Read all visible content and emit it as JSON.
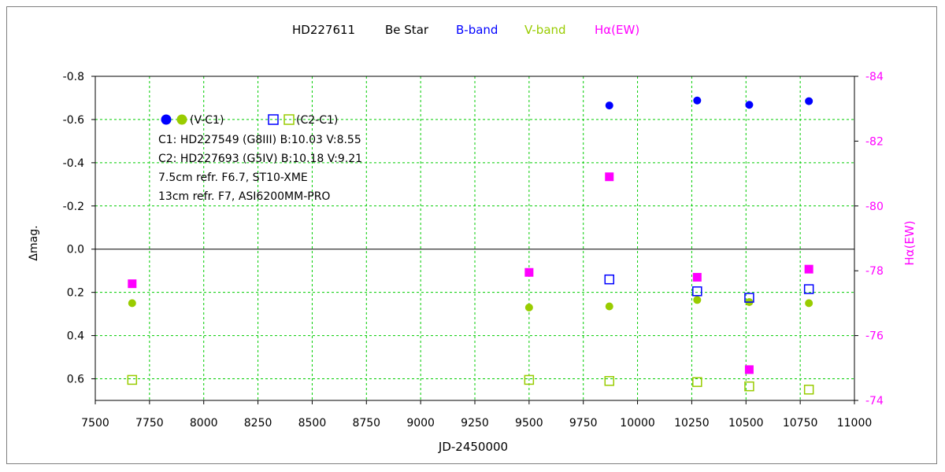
{
  "chart_data": {
    "type": "scatter",
    "title": {
      "star": "HD227611",
      "type": "Be Star",
      "bband": "B-band",
      "vband": "V-band",
      "halpha": "Hα(EW)"
    },
    "colors": {
      "bband": "#0000ff",
      "vband": "#99cc00",
      "halpha": "#ff00ff",
      "grid": "#00cc00",
      "axis": "#000000",
      "title": "#000000"
    },
    "xlabel": "JD-2450000",
    "ylabel_left": "Δmag.",
    "ylabel_right": "Hα(EW)",
    "xlim": [
      7500,
      11000
    ],
    "ylim_left": [
      -0.8,
      0.7
    ],
    "ylim_right": [
      -84,
      -74
    ],
    "left_axis_reversed": true,
    "right_axis_reversed": true,
    "x_ticks": [
      7500,
      7750,
      8000,
      8250,
      8500,
      8750,
      9000,
      9250,
      9500,
      9750,
      10000,
      10250,
      10500,
      10750,
      11000
    ],
    "y_left_ticks": [
      -0.8,
      -0.6,
      -0.4,
      -0.2,
      0.0,
      0.2,
      0.4,
      0.6
    ],
    "y_left_tick_labels": [
      "-0.8",
      "-0.6",
      "-0.4",
      "-0.2",
      "0.0",
      "0.2",
      "0.4",
      "0.6"
    ],
    "y_right_ticks": [
      -84,
      -82,
      -80,
      -78,
      -76,
      -74
    ],
    "y_right_tick_labels": [
      "-84",
      "-82",
      "-80",
      "-78",
      "-76",
      "-74"
    ],
    "grid": true,
    "legend": {
      "vc1_label": "(V-C1)",
      "c2c1_label": "(C2-C1)",
      "c1": "C1: HD227549 (G8III) B:10.03 V:8.55",
      "c2": "C2: HD227693 (G5IV) B:10.18 V:9.21",
      "inst1": "7.5cm refr. F6.7,  ST10-XME",
      "inst2": "13cm refr. F7,  ASI6200MM-PRO"
    },
    "series": [
      {
        "name": "B (V-C1)",
        "marker": "filled-circle",
        "color": "#0000ff",
        "axis": "left",
        "x": [
          9870,
          10275,
          10515,
          10790
        ],
        "y": [
          -0.665,
          -0.688,
          -0.668,
          -0.685
        ]
      },
      {
        "name": "V (V-C1)",
        "marker": "filled-circle",
        "color": "#99cc00",
        "axis": "left",
        "x": [
          7670,
          9500,
          9870,
          10275,
          10515,
          10790
        ],
        "y": [
          0.25,
          0.27,
          0.265,
          0.235,
          0.245,
          0.25
        ]
      },
      {
        "name": "B (C2-C1)",
        "marker": "open-square",
        "color": "#0000ff",
        "axis": "left",
        "x": [
          9870,
          10275,
          10515,
          10790
        ],
        "y": [
          0.14,
          0.195,
          0.225,
          0.185
        ]
      },
      {
        "name": "V (C2-C1)",
        "marker": "open-square",
        "color": "#99cc00",
        "axis": "left",
        "x": [
          7670,
          9500,
          9870,
          10275,
          10515,
          10790
        ],
        "y": [
          0.605,
          0.605,
          0.61,
          0.615,
          0.635,
          0.65
        ]
      },
      {
        "name": "Hα(EW)",
        "marker": "filled-square",
        "color": "#ff00ff",
        "axis": "right",
        "x": [
          7670,
          9500,
          9870,
          10275,
          10515,
          10790
        ],
        "y": [
          -77.6,
          -77.95,
          -80.9,
          -77.8,
          -74.95,
          -78.05
        ]
      }
    ]
  }
}
